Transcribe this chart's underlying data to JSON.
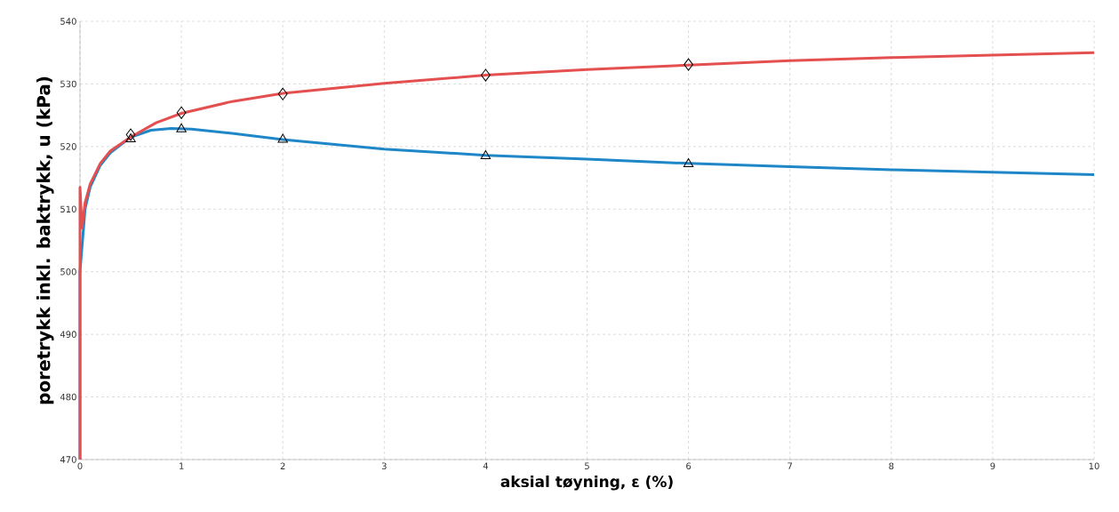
{
  "chart_data": {
    "type": "line",
    "xlabel": "aksial tøyning, ε (%)",
    "ylabel": "poretrykk inkl. baktrykk, u (kPa)",
    "xlim": [
      0,
      10
    ],
    "ylim": [
      470,
      540
    ],
    "xticks": [
      0,
      1,
      2,
      3,
      4,
      5,
      6,
      7,
      8,
      9,
      10
    ],
    "yticks": [
      470,
      480,
      490,
      500,
      510,
      520,
      530,
      540
    ],
    "grid": true,
    "series": [
      {
        "color": "#1f87c8",
        "marker": "none",
        "x": [
          0,
          0,
          0.05,
          0.1,
          0.2,
          0.3,
          0.5,
          0.7,
          0.9,
          1.1,
          1.5,
          2,
          3,
          4,
          5,
          6,
          7,
          8,
          9,
          10
        ],
        "values": [
          470,
          500,
          510,
          513.5,
          517,
          519,
          521.5,
          522.6,
          522.9,
          522.8,
          522.1,
          521.1,
          519.6,
          518.6,
          518,
          517.3,
          516.8,
          516.3,
          515.9,
          515.5
        ]
      },
      {
        "color": "#e45050",
        "marker": "none",
        "x": [
          0,
          0,
          0.02,
          0.05,
          0.1,
          0.2,
          0.3,
          0.5,
          0.75,
          1,
          1.5,
          2,
          3,
          4,
          5,
          6,
          7,
          8,
          9,
          10
        ],
        "values": [
          470,
          513.5,
          507,
          511,
          514,
          517.3,
          519.3,
          521.5,
          523.8,
          525.3,
          527.2,
          528.5,
          530.1,
          531.4,
          532.3,
          533,
          533.7,
          534.2,
          534.6,
          535
        ]
      },
      {
        "type": "scatter",
        "color": "#000000",
        "marker": "diamond",
        "x": [
          0.5,
          1,
          2,
          4,
          6
        ],
        "values": [
          521.9,
          525.4,
          528.4,
          531.4,
          533.1
        ]
      },
      {
        "type": "scatter",
        "color": "#000000",
        "marker": "triangle",
        "x": [
          0.5,
          1,
          2,
          4,
          6
        ],
        "values": [
          521.2,
          522.8,
          521.1,
          518.5,
          517.2
        ]
      }
    ]
  }
}
